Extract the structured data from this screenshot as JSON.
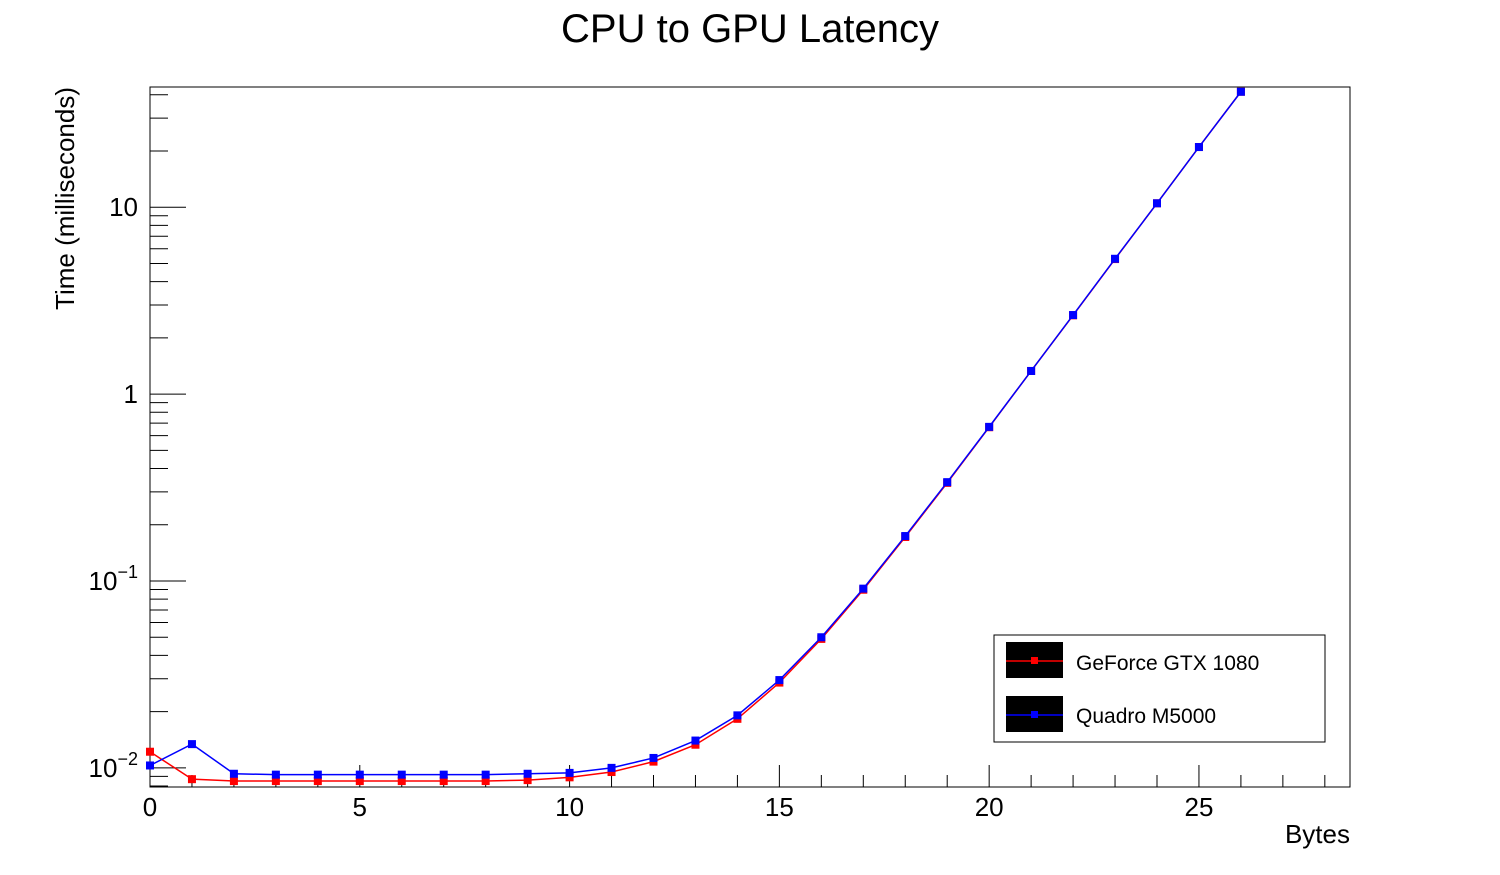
{
  "chart_data": {
    "type": "line",
    "title": "CPU to GPU Latency",
    "xlabel": "Bytes",
    "ylabel": "Time (milliseconds)",
    "xlim": [
      0,
      28.6
    ],
    "ylim": [
      0.0079,
      44
    ],
    "yscale": "log",
    "grid": false,
    "legend_position": "bottom-right",
    "x_ticks": [
      "0",
      "5",
      "10",
      "15",
      "20",
      "25"
    ],
    "y_ticks": [
      {
        "value": 0.01,
        "base": "10",
        "exponent": "−2"
      },
      {
        "value": 0.1,
        "base": "10",
        "exponent": "−1"
      },
      {
        "value": 1,
        "label": "1"
      },
      {
        "value": 10,
        "label": "10"
      }
    ],
    "x": [
      0,
      1,
      2,
      3,
      4,
      5,
      6,
      7,
      8,
      9,
      10,
      11,
      12,
      13,
      14,
      15,
      16,
      17,
      18,
      19,
      20,
      21,
      22,
      23,
      24,
      25,
      26
    ],
    "series": [
      {
        "name": "GeForce GTX 1080",
        "color": "#ff0000",
        "values": [
          0.0122,
          0.0087,
          0.0085,
          0.0085,
          0.0085,
          0.0085,
          0.0085,
          0.0085,
          0.0085,
          0.0086,
          0.0089,
          0.0095,
          0.0108,
          0.0133,
          0.0183,
          0.0286,
          0.049,
          0.0898,
          0.172,
          0.335,
          0.665,
          1.33,
          2.64,
          5.28,
          10.5,
          21.0,
          41.5
        ]
      },
      {
        "name": "Quadro M5000",
        "color": "#0000ff",
        "values": [
          0.0103,
          0.0134,
          0.0093,
          0.0092,
          0.0092,
          0.0092,
          0.0092,
          0.0092,
          0.0092,
          0.0093,
          0.0094,
          0.01,
          0.0113,
          0.014,
          0.0191,
          0.0295,
          0.05,
          0.091,
          0.174,
          0.338,
          0.668,
          1.33,
          2.65,
          5.3,
          10.5,
          21.0,
          41.5
        ]
      }
    ]
  }
}
